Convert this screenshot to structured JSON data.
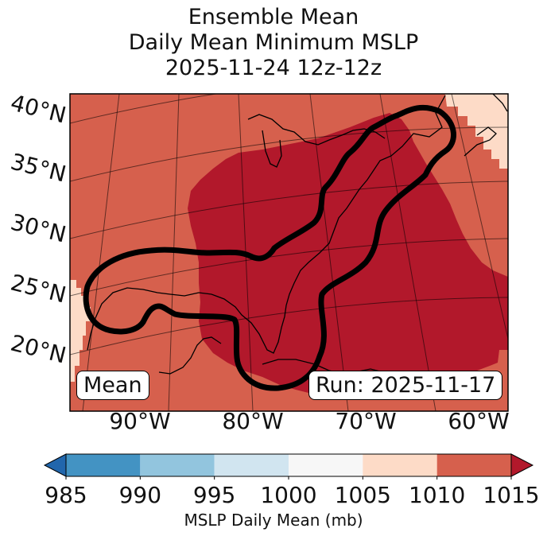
{
  "chart_data": {
    "type": "heatmap",
    "title_lines": [
      "Ensemble Mean",
      "Daily Mean Minimum MSLP",
      "2025-11-24 12z-12z"
    ],
    "lat_labels": [
      "40°N",
      "35°N",
      "30°N",
      "25°N",
      "20°N"
    ],
    "lon_labels": [
      "90°W",
      "80°W",
      "70°W",
      "60°W"
    ],
    "extent": {
      "lon_min": -96,
      "lon_max": -58,
      "lat_min": 16,
      "lat_max": 42
    },
    "colorbar": {
      "ticks": [
        "985",
        "990",
        "995",
        "1000",
        "1005",
        "1010",
        "1015"
      ],
      "bounds": [
        985,
        990,
        995,
        1000,
        1005,
        1010,
        1015
      ],
      "colors": [
        "#4393c3",
        "#92c5de",
        "#d1e5f0",
        "#f7f7f7",
        "#fddbc7",
        "#d6604d",
        "#b2182b"
      ],
      "under_color": "#2166ac",
      "over_color": "#b2182b",
      "label": "MSLP Daily Mean (mb)"
    },
    "field_colors": {
      "above_1015": "#b2182b",
      "range_1010_1015": "#d6604d",
      "range_1005_1010": "#fddbc7"
    },
    "mean_label": "Mean",
    "run_label": "Run: 2025-11-17"
  }
}
